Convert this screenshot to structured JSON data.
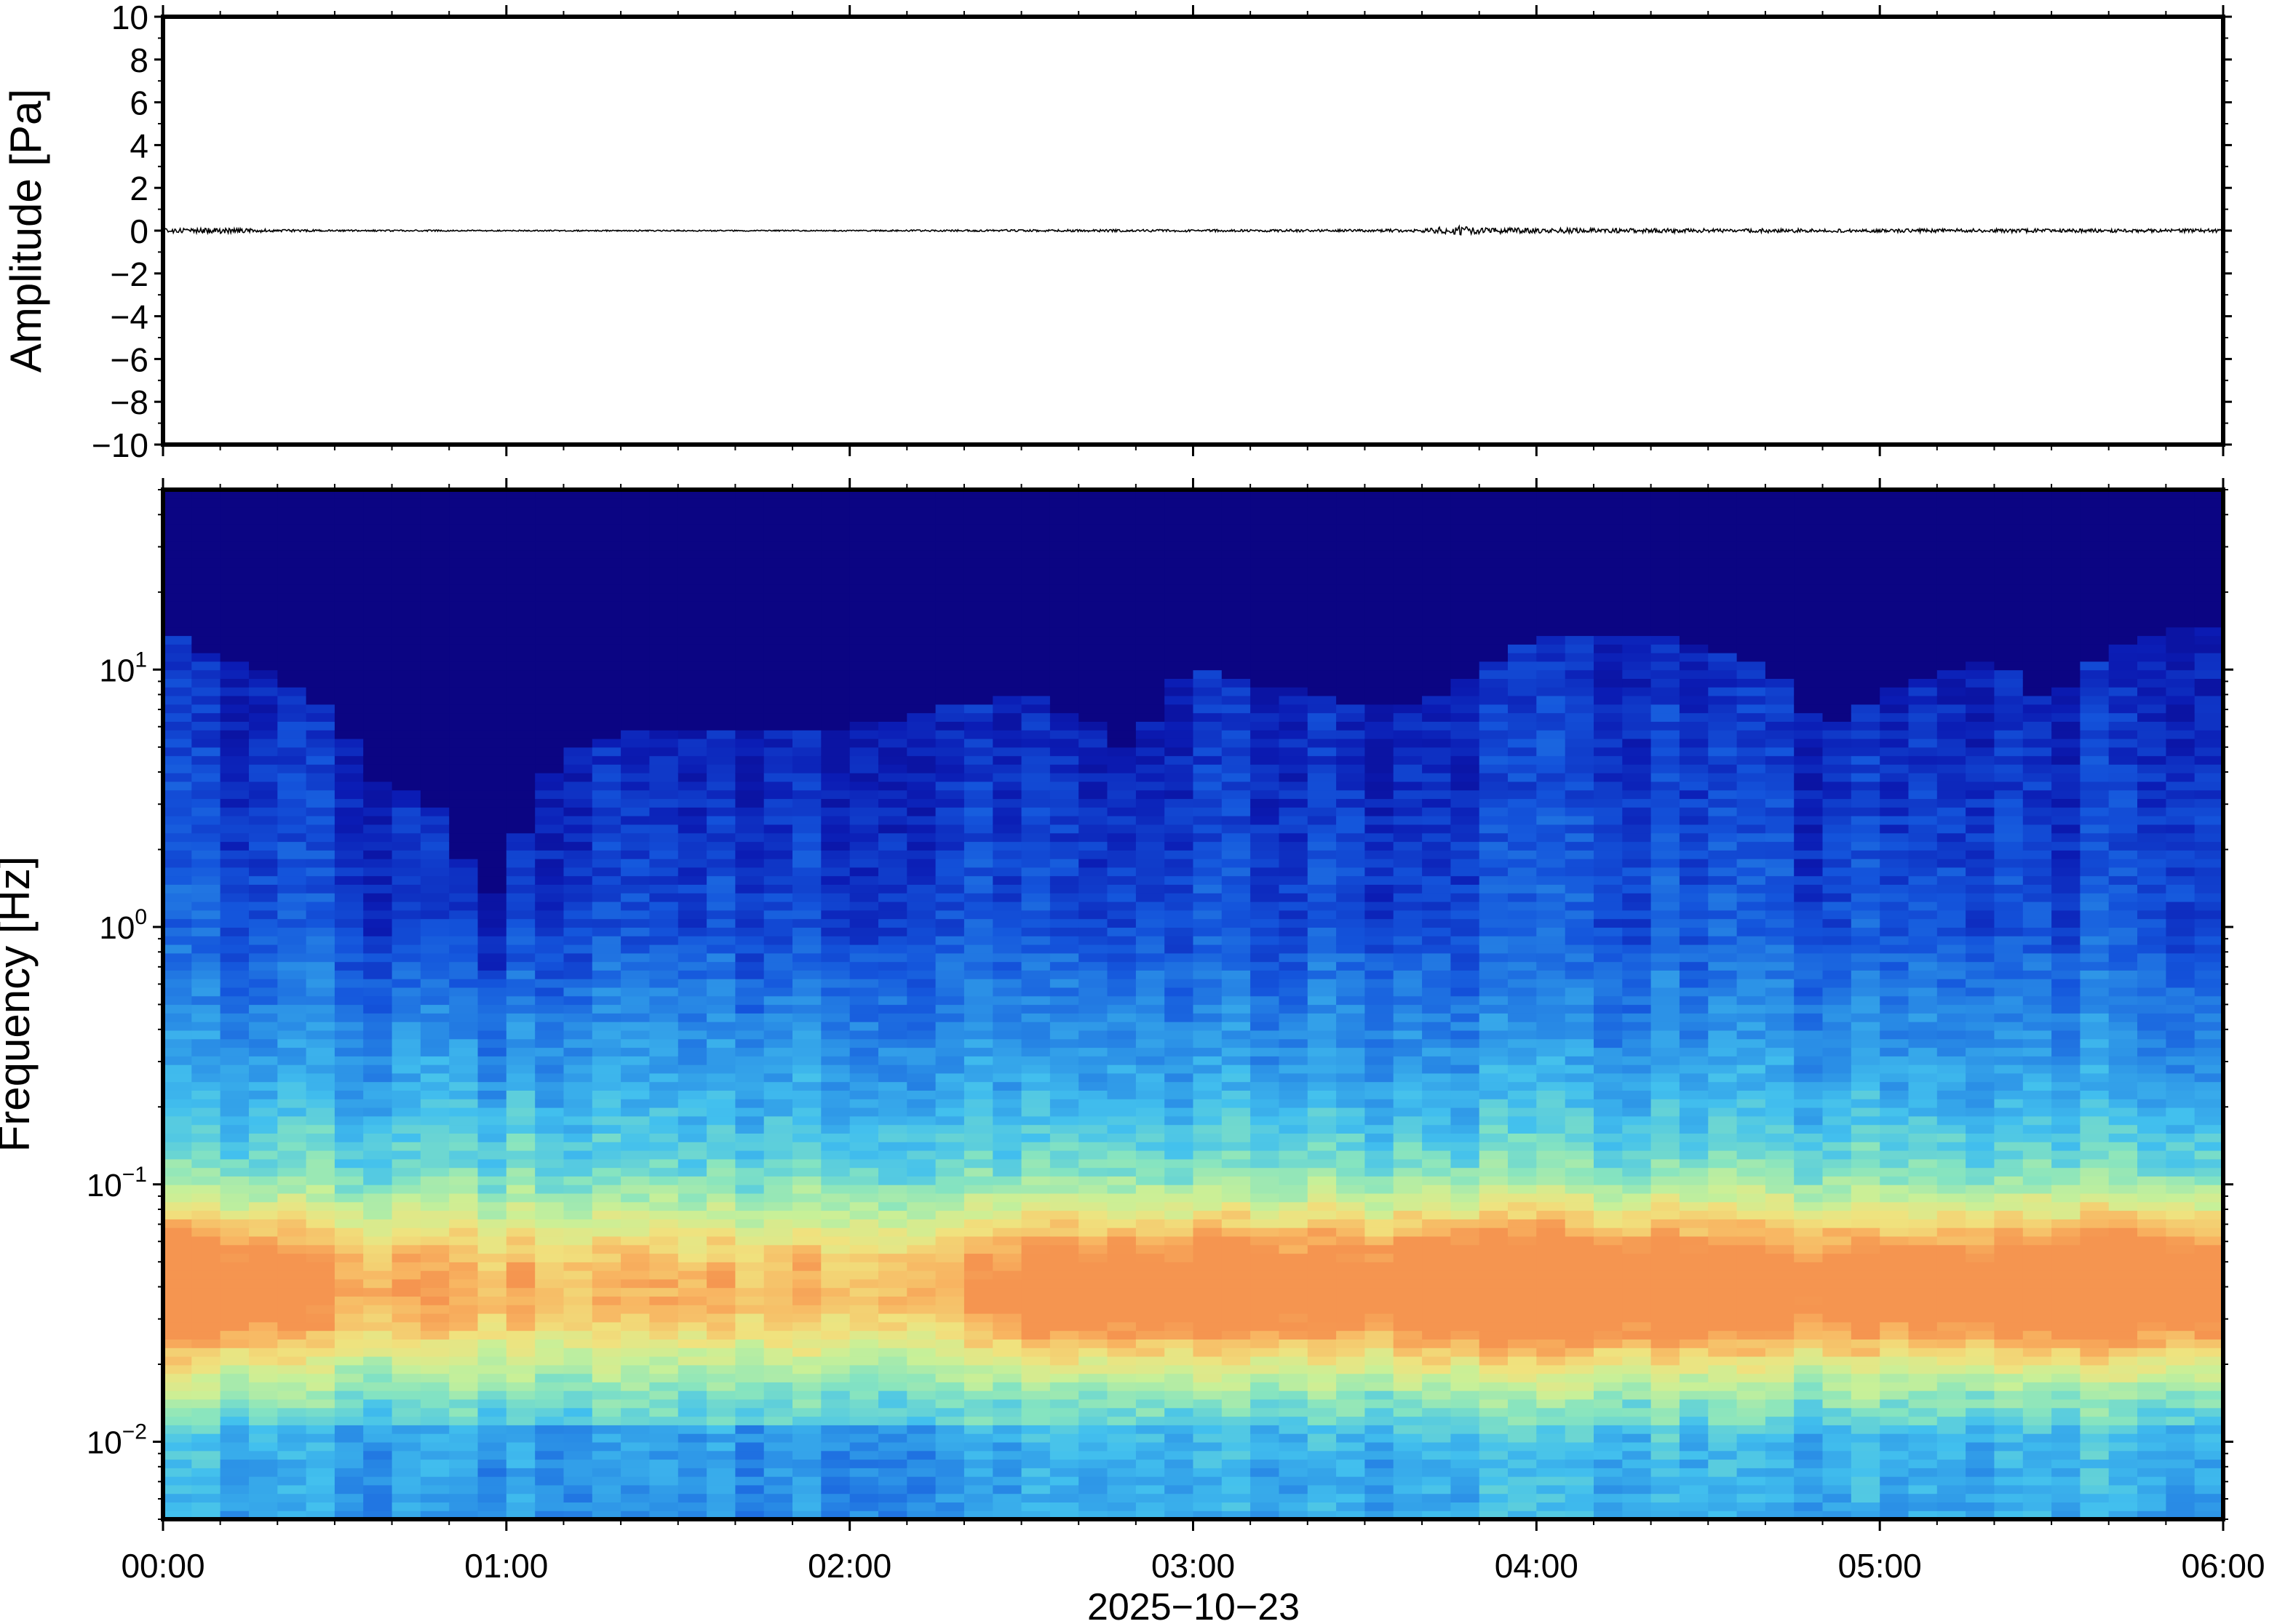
{
  "chart_data": [
    {
      "type": "line",
      "panel": "waveform",
      "ylabel": "Amplitude [Pa]",
      "ylim": [
        -10,
        10
      ],
      "y_ticks": [
        {
          "value": 10,
          "label": "10"
        },
        {
          "value": 8,
          "label": "8"
        },
        {
          "value": 6,
          "label": "6"
        },
        {
          "value": 4,
          "label": "4"
        },
        {
          "value": 2,
          "label": "2"
        },
        {
          "value": 0,
          "label": "0"
        },
        {
          "value": -2,
          "label": "−2"
        },
        {
          "value": -4,
          "label": "−4"
        },
        {
          "value": -6,
          "label": "−6"
        },
        {
          "value": -8,
          "label": "−8"
        },
        {
          "value": -10,
          "label": "−10"
        }
      ],
      "x_unit": "minutes since 00:00",
      "xlim": [
        0,
        360
      ],
      "series": [
        {
          "line_color": "#000000",
          "envelope_minutes": [
            0,
            10,
            20,
            30,
            60,
            90,
            120,
            150,
            180,
            210,
            220,
            226,
            230,
            240,
            250,
            260,
            270,
            280,
            290,
            300,
            320,
            340,
            360
          ],
          "envelope_amplitude": [
            0.1,
            0.13,
            0.06,
            0.04,
            0.03,
            0.03,
            0.03,
            0.05,
            0.06,
            0.06,
            0.08,
            0.25,
            0.14,
            0.12,
            0.11,
            0.1,
            0.09,
            0.1,
            0.08,
            0.08,
            0.09,
            0.08,
            0.08
          ]
        }
      ]
    },
    {
      "type": "heatmap",
      "panel": "spectrogram",
      "ylabel": "Frequency [Hz]",
      "y_scale": "log",
      "ylim": [
        0.005,
        50
      ],
      "y_ticks": [
        {
          "value": 10,
          "base": "10",
          "exp": "1"
        },
        {
          "value": 1,
          "base": "10",
          "exp": "0"
        },
        {
          "value": 0.1,
          "base": "10",
          "exp": "−1"
        },
        {
          "value": 0.01,
          "base": "10",
          "exp": "−2"
        }
      ],
      "colormap": "jet",
      "colormap_stops": [
        "#0b0078",
        "#0b1cb4",
        "#1455dc",
        "#2a8ee6",
        "#42c0ee",
        "#86e4c0",
        "#c8f098",
        "#f0e27e",
        "#f8b461",
        "#f27c42"
      ],
      "x_unit": "minutes since 00:00",
      "xlim": [
        0,
        360
      ],
      "x_ticks": [
        "00:00",
        "01:00",
        "02:00",
        "03:00",
        "04:00",
        "05:00",
        "06:00"
      ],
      "x_tick_minutes": [
        0,
        60,
        120,
        180,
        240,
        300,
        360
      ],
      "xlabel": "2025−10−23",
      "ceiling_hz": {
        "minutes": [
          0,
          10,
          20,
          30,
          35,
          40,
          45,
          50,
          55,
          60,
          70,
          90,
          100,
          120,
          135,
          150,
          165,
          170,
          175,
          180,
          200,
          220,
          230,
          240,
          260,
          270,
          280,
          290,
          300,
          320,
          330,
          340,
          350,
          360
        ],
        "values": [
          14,
          11,
          9.5,
          7,
          4,
          3.5,
          3.5,
          2.5,
          1.2,
          1.5,
          5,
          6,
          6,
          6,
          7,
          8,
          6,
          4,
          9,
          10,
          8,
          7,
          10,
          14,
          14,
          12,
          10,
          6,
          8,
          11,
          7,
          12,
          14,
          15
        ]
      },
      "warm_band": {
        "minutes": [
          0,
          10,
          30,
          60,
          100,
          140,
          150,
          170,
          190,
          210,
          222,
          230,
          245,
          260,
          285,
          300,
          320,
          340,
          350,
          360
        ],
        "strength": [
          0.7,
          0.7,
          0.35,
          0.2,
          0.2,
          0.25,
          0.55,
          0.6,
          0.6,
          0.55,
          0.75,
          0.8,
          0.7,
          0.7,
          0.55,
          0.55,
          0.6,
          0.8,
          0.7,
          0.7
        ]
      }
    }
  ]
}
